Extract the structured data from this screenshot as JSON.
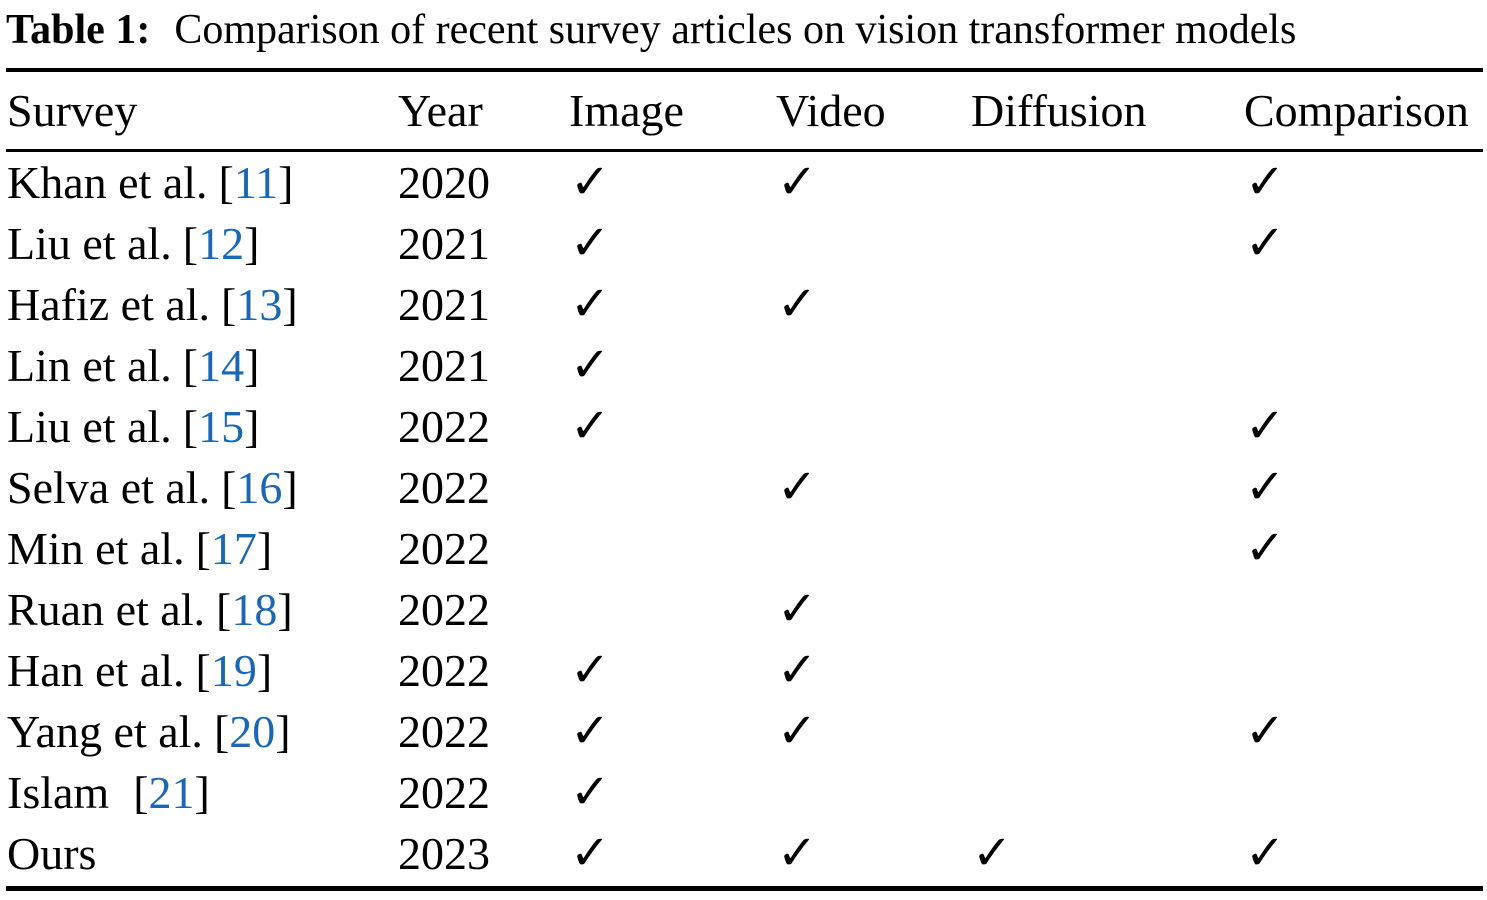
{
  "title": {
    "label": "Table 1:",
    "text": "Comparison of recent survey articles on vision transformer models"
  },
  "colors": {
    "text": "#000000",
    "citation": "#1c67b5",
    "rule": "#000000",
    "background": "#ffffff"
  },
  "icons": {
    "checkmark": "✓"
  },
  "table": {
    "columns": [
      "Survey",
      "Year",
      "Image",
      "Video",
      "Diffusion",
      "Comparison"
    ],
    "cite_open": "[",
    "cite_close": "]",
    "rows": [
      {
        "author": "Khan et al.",
        "cite": "11",
        "year": "2020",
        "image": "✓",
        "video": "✓",
        "diffusion": "",
        "comparison": "✓"
      },
      {
        "author": "Liu et al.",
        "cite": "12",
        "year": "2021",
        "image": "✓",
        "video": "",
        "diffusion": "",
        "comparison": "✓"
      },
      {
        "author": "Hafiz et al.",
        "cite": "13",
        "year": "2021",
        "image": "✓",
        "video": "✓",
        "diffusion": "",
        "comparison": ""
      },
      {
        "author": "Lin et al.",
        "cite": "14",
        "year": "2021",
        "image": "✓",
        "video": "",
        "diffusion": "",
        "comparison": ""
      },
      {
        "author": "Liu et al.",
        "cite": "15",
        "year": "2022",
        "image": "✓",
        "video": "",
        "diffusion": "",
        "comparison": "✓"
      },
      {
        "author": "Selva et al.",
        "cite": "16",
        "year": "2022",
        "image": "",
        "video": "✓",
        "diffusion": "",
        "comparison": "✓"
      },
      {
        "author": "Min et al.",
        "cite": "17",
        "year": "2022",
        "image": "",
        "video": "",
        "diffusion": "",
        "comparison": "✓"
      },
      {
        "author": "Ruan et al.",
        "cite": "18",
        "year": "2022",
        "image": "",
        "video": "✓",
        "diffusion": "",
        "comparison": ""
      },
      {
        "author": "Han et al.",
        "cite": "19",
        "year": "2022",
        "image": "✓",
        "video": "✓",
        "diffusion": "",
        "comparison": ""
      },
      {
        "author": "Yang et al.",
        "cite": "20",
        "year": "2022",
        "image": "✓",
        "video": "✓",
        "diffusion": "",
        "comparison": "✓"
      },
      {
        "author": "Islam",
        "cite": "21",
        "year": "2022",
        "image": "✓",
        "video": "",
        "diffusion": "",
        "comparison": ""
      },
      {
        "author": "Ours",
        "year": "2023",
        "image": "✓",
        "video": "✓",
        "diffusion": "✓",
        "comparison": "✓"
      }
    ]
  }
}
